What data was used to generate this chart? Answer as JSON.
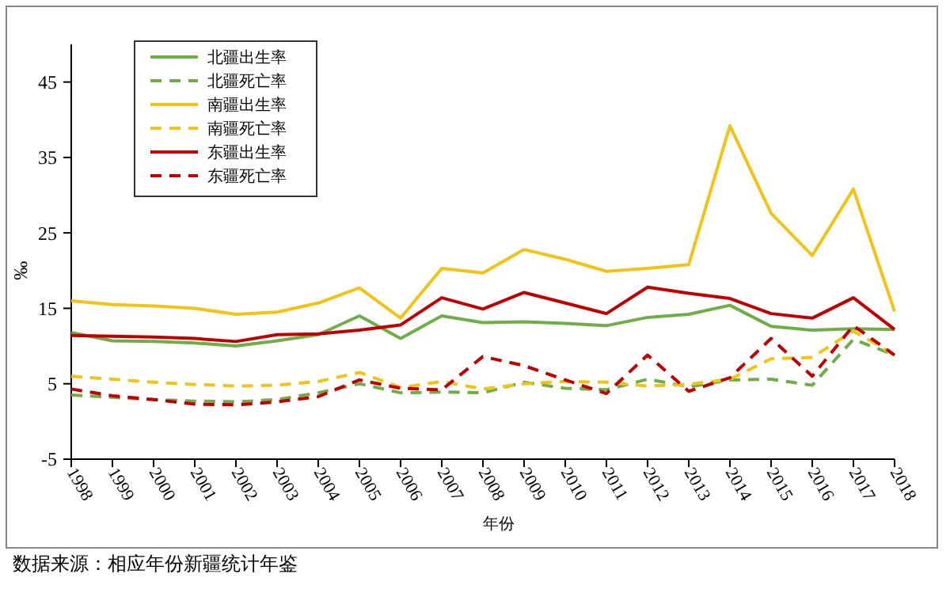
{
  "chart_data": {
    "type": "line",
    "xlabel": "年份",
    "ylabel": "‰",
    "annotations": [
      "数据来源：相应年份新疆统计年鉴"
    ],
    "categories": [
      "1998",
      "1999",
      "2000",
      "2001",
      "2002",
      "2003",
      "2004",
      "2005",
      "2006",
      "2007",
      "2008",
      "2009",
      "2010",
      "2011",
      "2012",
      "2013",
      "2014",
      "2015",
      "2016",
      "2017",
      "2018"
    ],
    "ylim": [
      -5,
      50
    ],
    "yticks": [
      -5,
      5,
      15,
      25,
      35,
      45
    ],
    "grid": false,
    "legend": "top left",
    "marker": "none",
    "series": [
      {
        "name": "北疆出生率",
        "color": "#70ad47",
        "line_style": "solid",
        "values": [
          11.8,
          10.7,
          10.6,
          10.4,
          10.0,
          10.7,
          11.5,
          14.0,
          11.0,
          14.0,
          13.1,
          13.2,
          13.0,
          12.7,
          13.8,
          14.2,
          15.4,
          12.6,
          12.1,
          12.3,
          12.2
        ]
      },
      {
        "name": "北疆死亡率",
        "color": "#70ad47",
        "line_style": "dashed",
        "values": [
          3.5,
          3.2,
          2.9,
          2.7,
          2.6,
          2.9,
          3.8,
          5.0,
          3.8,
          3.9,
          3.8,
          5.2,
          4.4,
          4.2,
          5.6,
          4.6,
          5.5,
          5.6,
          4.8,
          10.9,
          8.8
        ]
      },
      {
        "name": "南疆出生率",
        "color": "#f2c314",
        "line_style": "solid",
        "values": [
          16.0,
          15.5,
          15.3,
          15.0,
          14.2,
          14.5,
          15.7,
          17.7,
          13.7,
          20.3,
          19.7,
          22.8,
          21.5,
          19.9,
          20.3,
          20.8,
          39.2,
          27.6,
          22.0,
          30.8,
          14.6
        ]
      },
      {
        "name": "南疆死亡率",
        "color": "#f2c314",
        "line_style": "dashed",
        "values": [
          6.0,
          5.6,
          5.2,
          4.9,
          4.7,
          4.8,
          5.3,
          6.5,
          4.5,
          5.3,
          4.3,
          5.0,
          5.3,
          5.2,
          4.7,
          4.9,
          5.6,
          8.3,
          8.5,
          12.0,
          8.8
        ]
      },
      {
        "name": "东疆出生率",
        "color": "#c00000",
        "line_style": "solid",
        "values": [
          11.4,
          11.3,
          11.2,
          11.0,
          10.6,
          11.5,
          11.6,
          12.1,
          12.8,
          16.4,
          14.9,
          17.1,
          15.7,
          14.3,
          17.8,
          17.0,
          16.3,
          14.3,
          13.7,
          16.4,
          12.2
        ]
      },
      {
        "name": "东疆死亡率",
        "color": "#c00000",
        "line_style": "dashed",
        "values": [
          4.3,
          3.4,
          2.9,
          2.3,
          2.2,
          2.6,
          3.3,
          5.5,
          4.4,
          4.2,
          8.6,
          7.4,
          5.5,
          3.7,
          8.8,
          4.0,
          5.8,
          11.0,
          6.0,
          12.7,
          8.8
        ]
      }
    ]
  }
}
